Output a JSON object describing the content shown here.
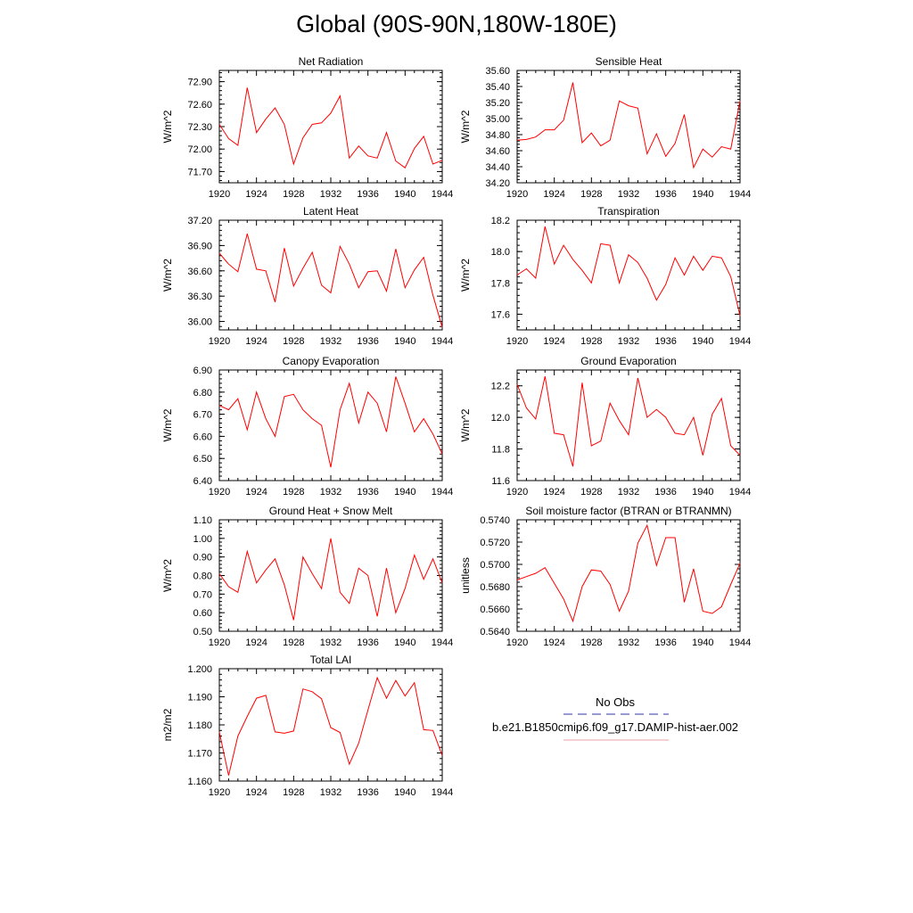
{
  "page": {
    "title": "Global (90S-90N,180W-180E)"
  },
  "legend": {
    "entries": [
      {
        "label": "No Obs",
        "color": "#3333aa",
        "dash": true
      },
      {
        "label": "b.e21.B1850cmip6.f09_g17.DAMIP-hist-aer.002",
        "color": "#e8a0a0",
        "dash": false
      }
    ]
  },
  "chart_data": [
    {
      "type": "line",
      "title": "Net Radiation",
      "xlabel": "",
      "ylabel": "W/m^2",
      "xlim": [
        1920,
        1944
      ],
      "ylim": [
        71.55,
        73.05
      ],
      "yticks": [
        "71.70",
        "72.00",
        "72.30",
        "72.60",
        "72.90"
      ],
      "xticks": [
        "1920",
        "1924",
        "1928",
        "1932",
        "1936",
        "1940",
        "1944"
      ],
      "x": [
        1920,
        1921,
        1922,
        1923,
        1924,
        1925,
        1926,
        1927,
        1928,
        1929,
        1930,
        1931,
        1932,
        1933,
        1934,
        1935,
        1936,
        1937,
        1938,
        1939,
        1940,
        1941,
        1942,
        1943,
        1944
      ],
      "series": [
        {
          "color": "#ff0000",
          "values": [
            72.33,
            72.14,
            72.05,
            72.82,
            72.22,
            72.4,
            72.55,
            72.33,
            71.8,
            72.15,
            72.33,
            72.35,
            72.48,
            72.71,
            71.88,
            72.04,
            71.91,
            71.88,
            72.22,
            71.84,
            71.75,
            72.01,
            72.17,
            71.8,
            71.85
          ]
        }
      ]
    },
    {
      "type": "line",
      "title": "Sensible Heat",
      "xlabel": "",
      "ylabel": "W/m^2",
      "xlim": [
        1920,
        1944
      ],
      "ylim": [
        34.2,
        35.6
      ],
      "yticks": [
        "34.20",
        "34.40",
        "34.60",
        "34.80",
        "35.00",
        "35.20",
        "35.40",
        "35.60"
      ],
      "xticks": [
        "1920",
        "1924",
        "1928",
        "1932",
        "1936",
        "1940",
        "1944"
      ],
      "x": [
        1920,
        1921,
        1922,
        1923,
        1924,
        1925,
        1926,
        1927,
        1928,
        1929,
        1930,
        1931,
        1932,
        1933,
        1934,
        1935,
        1936,
        1937,
        1938,
        1939,
        1940,
        1941,
        1942,
        1943,
        1944
      ],
      "series": [
        {
          "color": "#ff0000",
          "values": [
            34.73,
            34.74,
            34.77,
            34.86,
            34.86,
            34.98,
            35.45,
            34.7,
            34.82,
            34.66,
            34.73,
            35.22,
            35.16,
            35.13,
            34.56,
            34.81,
            34.53,
            34.69,
            35.05,
            34.39,
            34.62,
            34.52,
            34.65,
            34.62,
            35.22
          ]
        }
      ]
    },
    {
      "type": "line",
      "title": "Latent Heat",
      "xlabel": "",
      "ylabel": "W/m^2",
      "xlim": [
        1920,
        1944
      ],
      "ylim": [
        35.9,
        37.2
      ],
      "yticks": [
        "36.00",
        "36.30",
        "36.60",
        "36.90",
        "37.20"
      ],
      "xticks": [
        "1920",
        "1924",
        "1928",
        "1932",
        "1936",
        "1940",
        "1944"
      ],
      "x": [
        1920,
        1921,
        1922,
        1923,
        1924,
        1925,
        1926,
        1927,
        1928,
        1929,
        1930,
        1931,
        1932,
        1933,
        1934,
        1935,
        1936,
        1937,
        1938,
        1939,
        1940,
        1941,
        1942,
        1943,
        1944
      ],
      "series": [
        {
          "color": "#ff0000",
          "values": [
            36.81,
            36.68,
            36.59,
            37.04,
            36.62,
            36.6,
            36.23,
            36.87,
            36.42,
            36.63,
            36.82,
            36.43,
            36.34,
            36.89,
            36.68,
            36.4,
            36.59,
            36.6,
            36.36,
            36.86,
            36.4,
            36.61,
            36.76,
            36.31,
            35.93
          ]
        }
      ]
    },
    {
      "type": "line",
      "title": "Transpiration",
      "xlabel": "",
      "ylabel": "W/m^2",
      "xlim": [
        1920,
        1944
      ],
      "ylim": [
        17.5,
        18.2
      ],
      "yticks": [
        "17.6",
        "17.8",
        "18.0",
        "18.2"
      ],
      "xticks": [
        "1920",
        "1924",
        "1928",
        "1932",
        "1936",
        "1940",
        "1944"
      ],
      "x": [
        1920,
        1921,
        1922,
        1923,
        1924,
        1925,
        1926,
        1927,
        1928,
        1929,
        1930,
        1931,
        1932,
        1933,
        1934,
        1935,
        1936,
        1937,
        1938,
        1939,
        1940,
        1941,
        1942,
        1943,
        1944
      ],
      "series": [
        {
          "color": "#ff0000",
          "values": [
            17.85,
            17.89,
            17.83,
            18.16,
            17.92,
            18.04,
            17.95,
            17.88,
            17.8,
            18.05,
            18.04,
            17.8,
            17.98,
            17.93,
            17.83,
            17.69,
            17.79,
            17.96,
            17.85,
            17.97,
            17.88,
            17.97,
            17.96,
            17.84,
            17.59
          ]
        }
      ]
    },
    {
      "type": "line",
      "title": "Canopy Evaporation",
      "xlabel": "",
      "ylabel": "W/m^2",
      "xlim": [
        1920,
        1944
      ],
      "ylim": [
        6.4,
        6.9
      ],
      "yticks": [
        "6.40",
        "6.50",
        "6.60",
        "6.70",
        "6.80",
        "6.90"
      ],
      "xticks": [
        "1920",
        "1924",
        "1928",
        "1932",
        "1936",
        "1940",
        "1944"
      ],
      "x": [
        1920,
        1921,
        1922,
        1923,
        1924,
        1925,
        1926,
        1927,
        1928,
        1929,
        1930,
        1931,
        1932,
        1933,
        1934,
        1935,
        1936,
        1937,
        1938,
        1939,
        1940,
        1941,
        1942,
        1943,
        1944
      ],
      "series": [
        {
          "color": "#ff0000",
          "values": [
            6.74,
            6.72,
            6.77,
            6.63,
            6.8,
            6.68,
            6.6,
            6.78,
            6.79,
            6.72,
            6.68,
            6.65,
            6.46,
            6.72,
            6.84,
            6.66,
            6.8,
            6.75,
            6.62,
            6.87,
            6.75,
            6.62,
            6.68,
            6.61,
            6.52
          ]
        }
      ]
    },
    {
      "type": "line",
      "title": "Ground Evaporation",
      "xlabel": "",
      "ylabel": "W/m^2",
      "xlim": [
        1920,
        1944
      ],
      "ylim": [
        11.6,
        12.3
      ],
      "yticks": [
        "11.6",
        "11.8",
        "12.0",
        "12.2"
      ],
      "xticks": [
        "1920",
        "1924",
        "1928",
        "1932",
        "1936",
        "1940",
        "1944"
      ],
      "x": [
        1920,
        1921,
        1922,
        1923,
        1924,
        1925,
        1926,
        1927,
        1928,
        1929,
        1930,
        1931,
        1932,
        1933,
        1934,
        1935,
        1936,
        1937,
        1938,
        1939,
        1940,
        1941,
        1942,
        1943,
        1944
      ],
      "series": [
        {
          "color": "#ff0000",
          "values": [
            12.21,
            12.06,
            11.99,
            12.26,
            11.9,
            11.89,
            11.69,
            12.22,
            11.82,
            11.85,
            12.09,
            11.98,
            11.89,
            12.25,
            12.0,
            12.05,
            12.0,
            11.9,
            11.89,
            12.0,
            11.76,
            12.02,
            12.12,
            11.82,
            11.76
          ]
        }
      ]
    },
    {
      "type": "line",
      "title": "Ground Heat + Snow Melt",
      "xlabel": "",
      "ylabel": "W/m^2",
      "xlim": [
        1920,
        1944
      ],
      "ylim": [
        0.5,
        1.1
      ],
      "yticks": [
        "0.50",
        "0.60",
        "0.70",
        "0.80",
        "0.90",
        "1.00",
        "1.10"
      ],
      "xticks": [
        "1920",
        "1924",
        "1928",
        "1932",
        "1936",
        "1940",
        "1944"
      ],
      "x": [
        1920,
        1921,
        1922,
        1923,
        1924,
        1925,
        1926,
        1927,
        1928,
        1929,
        1930,
        1931,
        1932,
        1933,
        1934,
        1935,
        1936,
        1937,
        1938,
        1939,
        1940,
        1941,
        1942,
        1943,
        1944
      ],
      "series": [
        {
          "color": "#ff0000",
          "values": [
            0.81,
            0.74,
            0.71,
            0.93,
            0.76,
            0.83,
            0.89,
            0.75,
            0.56,
            0.9,
            0.81,
            0.73,
            1.0,
            0.71,
            0.65,
            0.84,
            0.8,
            0.58,
            0.84,
            0.6,
            0.73,
            0.91,
            0.78,
            0.89,
            0.76
          ]
        }
      ]
    },
    {
      "type": "line",
      "title": "Soil moisture factor (BTRAN or BTRANMN)",
      "xlabel": "",
      "ylabel": "unitless",
      "xlim": [
        1920,
        1944
      ],
      "ylim": [
        0.564,
        0.574
      ],
      "yticks": [
        "0.5640",
        "0.5660",
        "0.5680",
        "0.5700",
        "0.5720",
        "0.5740"
      ],
      "xticks": [
        "1920",
        "1924",
        "1928",
        "1932",
        "1936",
        "1940",
        "1944"
      ],
      "x": [
        1920,
        1921,
        1922,
        1923,
        1924,
        1925,
        1926,
        1927,
        1928,
        1929,
        1930,
        1931,
        1932,
        1933,
        1934,
        1935,
        1936,
        1937,
        1938,
        1939,
        1940,
        1941,
        1942,
        1943,
        1944
      ],
      "series": [
        {
          "color": "#ff0000",
          "values": [
            0.5686,
            0.5689,
            0.5692,
            0.5697,
            0.5683,
            0.5669,
            0.5649,
            0.568,
            0.5695,
            0.5694,
            0.5682,
            0.5658,
            0.5676,
            0.5719,
            0.5735,
            0.5699,
            0.5724,
            0.5724,
            0.5666,
            0.5696,
            0.5658,
            0.5656,
            0.5662,
            0.5682,
            0.5701
          ]
        }
      ]
    },
    {
      "type": "line",
      "title": "Total LAI",
      "xlabel": "",
      "ylabel": "m2/m2",
      "xlim": [
        1920,
        1944
      ],
      "ylim": [
        1.16,
        1.2
      ],
      "yticks": [
        "1.160",
        "1.170",
        "1.180",
        "1.190",
        "1.200"
      ],
      "xticks": [
        "1920",
        "1924",
        "1928",
        "1932",
        "1936",
        "1940",
        "1944"
      ],
      "x": [
        1920,
        1921,
        1922,
        1923,
        1924,
        1925,
        1926,
        1927,
        1928,
        1929,
        1930,
        1931,
        1932,
        1933,
        1934,
        1935,
        1936,
        1937,
        1938,
        1939,
        1940,
        1941,
        1942,
        1943,
        1944
      ],
      "series": [
        {
          "color": "#ff0000",
          "values": [
            1.1775,
            1.162,
            1.176,
            1.183,
            1.1895,
            1.1905,
            1.1775,
            1.177,
            1.1778,
            1.1928,
            1.1918,
            1.1893,
            1.179,
            1.1773,
            1.166,
            1.1735,
            1.1853,
            1.1968,
            1.1895,
            1.1958,
            1.1903,
            1.195,
            1.1783,
            1.178,
            1.169
          ]
        }
      ]
    }
  ]
}
